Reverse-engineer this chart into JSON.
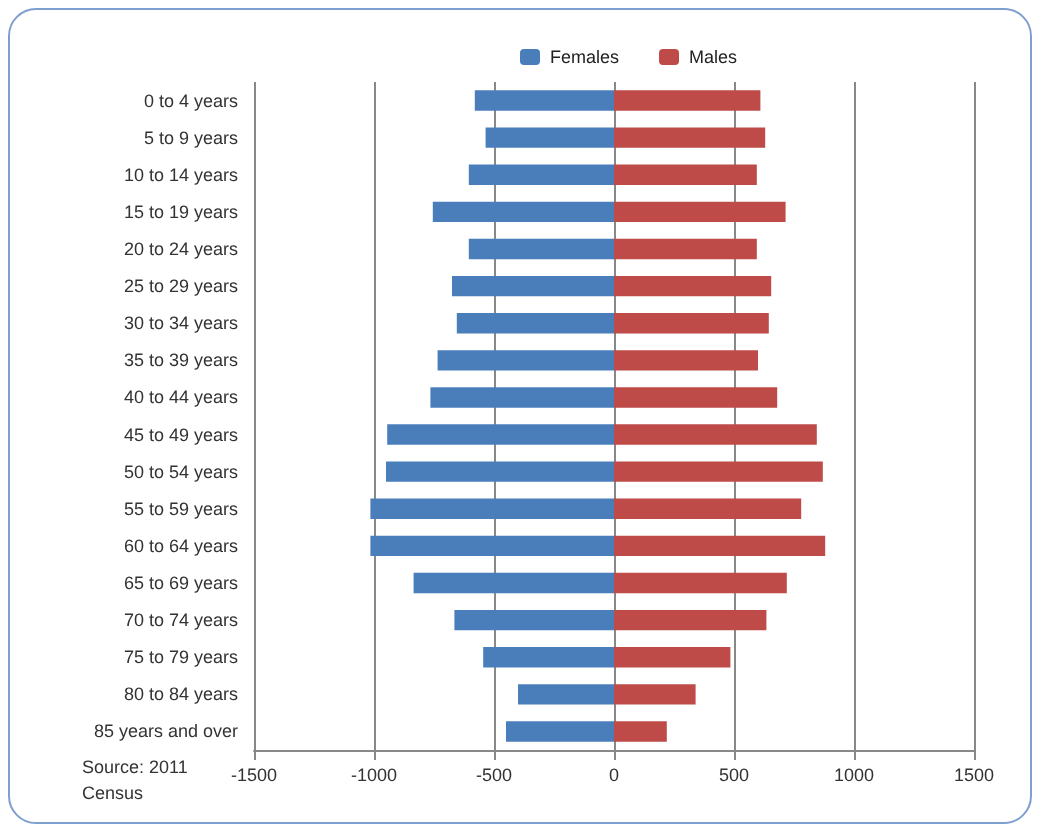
{
  "chart_data": {
    "type": "bar",
    "orientation": "horizontal",
    "stacked": true,
    "categories": [
      "0 to 4 years",
      "5 to 9 years",
      "10 to 14 years",
      "15 to 19 years",
      "20 to 24 years",
      "25 to 29 years",
      "30 to 34 years",
      "35 to 39 years",
      "40 to 44 years",
      "45 to 49 years",
      "50 to 54 years",
      "55 to 59 years",
      "60 to 64 years",
      "65 to 69 years",
      "70 to 74 years",
      "75 to 79 years",
      "80 to 84 years",
      "85 years and over"
    ],
    "series": [
      {
        "name": "Females",
        "color": "#4a7ebb",
        "values": [
          -580,
          -535,
          -605,
          -755,
          -605,
          -675,
          -655,
          -735,
          -765,
          -945,
          -950,
          -1015,
          -1015,
          -835,
          -665,
          -545,
          -400,
          -450
        ]
      },
      {
        "name": "Males",
        "color": "#be4b48",
        "values": [
          610,
          630,
          595,
          715,
          595,
          655,
          645,
          600,
          680,
          845,
          870,
          780,
          880,
          720,
          635,
          485,
          340,
          220
        ]
      }
    ],
    "xlim": [
      -1500,
      1500
    ],
    "xticks": [
      -1500,
      -1000,
      -500,
      0,
      500,
      1000,
      1500
    ],
    "grid": "x",
    "legend": "top",
    "annotations": [
      "Source: 2011 Census"
    ]
  }
}
